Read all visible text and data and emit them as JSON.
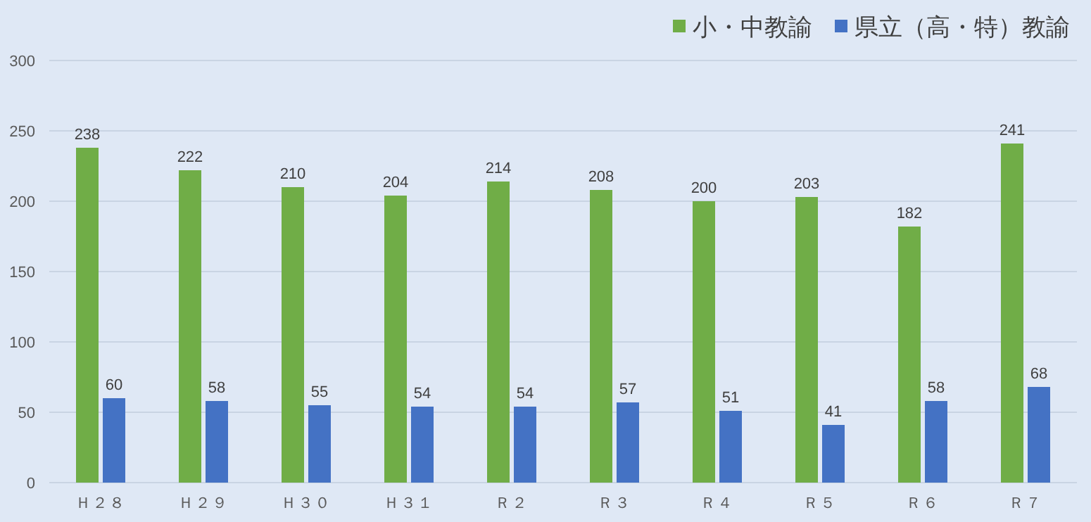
{
  "chart_data": {
    "type": "bar",
    "categories": [
      "Ｈ２８",
      "Ｈ２９",
      "Ｈ３０",
      "Ｈ３１",
      "Ｒ２",
      "Ｒ３",
      "Ｒ４",
      "Ｒ５",
      "Ｒ６",
      "Ｒ７"
    ],
    "series": [
      {
        "name": "小・中教諭",
        "color": "#70ad47",
        "values": [
          238,
          222,
          210,
          204,
          214,
          208,
          200,
          203,
          182,
          241
        ]
      },
      {
        "name": "県立（高・特）教諭",
        "color": "#4472c4",
        "values": [
          60,
          58,
          55,
          54,
          54,
          57,
          51,
          41,
          58,
          68
        ]
      }
    ],
    "ylim": [
      0,
      300
    ],
    "yticks": [
      0,
      50,
      100,
      150,
      200,
      250,
      300
    ],
    "grid": "y",
    "legend": "top right",
    "data_labels": true
  }
}
